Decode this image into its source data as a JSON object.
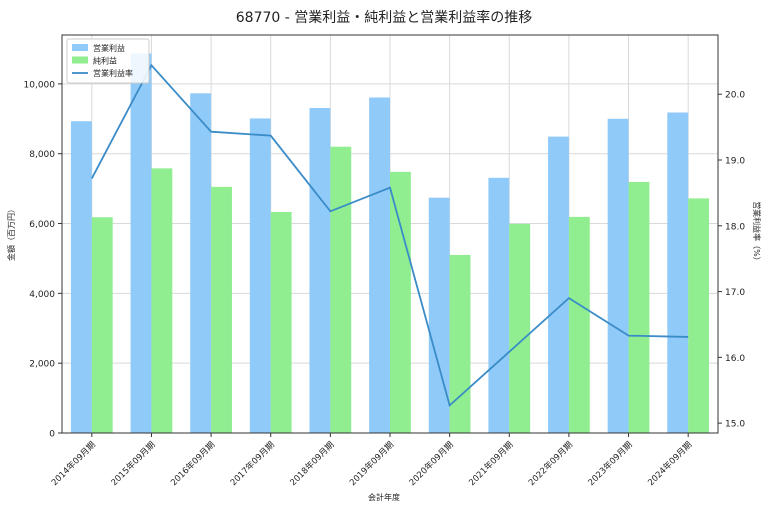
{
  "chart_data": {
    "type": "bar",
    "title": "68770 - 営業利益・純利益と営業利益率の推移",
    "xlabel": "会計年度",
    "ylabel": "金額（百万円）",
    "y2label": "営業利益率（%）",
    "categories": [
      "2014年09月期",
      "2015年09月期",
      "2016年09月期",
      "2017年09月期",
      "2018年09月期",
      "2019年09月期",
      "2020年09月期",
      "2021年09月期",
      "2022年09月期",
      "2023年09月期",
      "2024年09月期"
    ],
    "series": [
      {
        "name": "営業利益",
        "kind": "bar",
        "color": "#90caf9",
        "values": [
          8930,
          10870,
          9730,
          9010,
          9310,
          9610,
          6740,
          7310,
          8490,
          9000,
          9180
        ]
      },
      {
        "name": "純利益",
        "kind": "bar",
        "color": "#90ee90",
        "values": [
          6180,
          7580,
          7050,
          6330,
          8200,
          7480,
          5100,
          5990,
          6190,
          7190,
          6720
        ]
      },
      {
        "name": "営業利益率",
        "kind": "line",
        "axis": "right",
        "color": "#3a8cc8",
        "values": [
          18.72,
          20.44,
          19.43,
          19.37,
          18.22,
          18.58,
          15.27,
          null,
          16.9,
          16.33,
          16.31
        ]
      }
    ],
    "ylim": [
      0,
      11400
    ],
    "y_ticks": [
      "0",
      "2,000",
      "4,000",
      "6,000",
      "8,000",
      "10,000"
    ],
    "y_tick_values": [
      0,
      2000,
      4000,
      6000,
      8000,
      10000
    ],
    "y2lim": [
      14.85,
      20.9
    ],
    "y2_ticks": [
      "15.0",
      "16.0",
      "17.0",
      "18.0",
      "19.0",
      "20.0"
    ],
    "y2_tick_values": [
      15,
      16,
      17,
      18,
      19,
      20
    ],
    "grid": true,
    "legend_position": "top-left"
  }
}
